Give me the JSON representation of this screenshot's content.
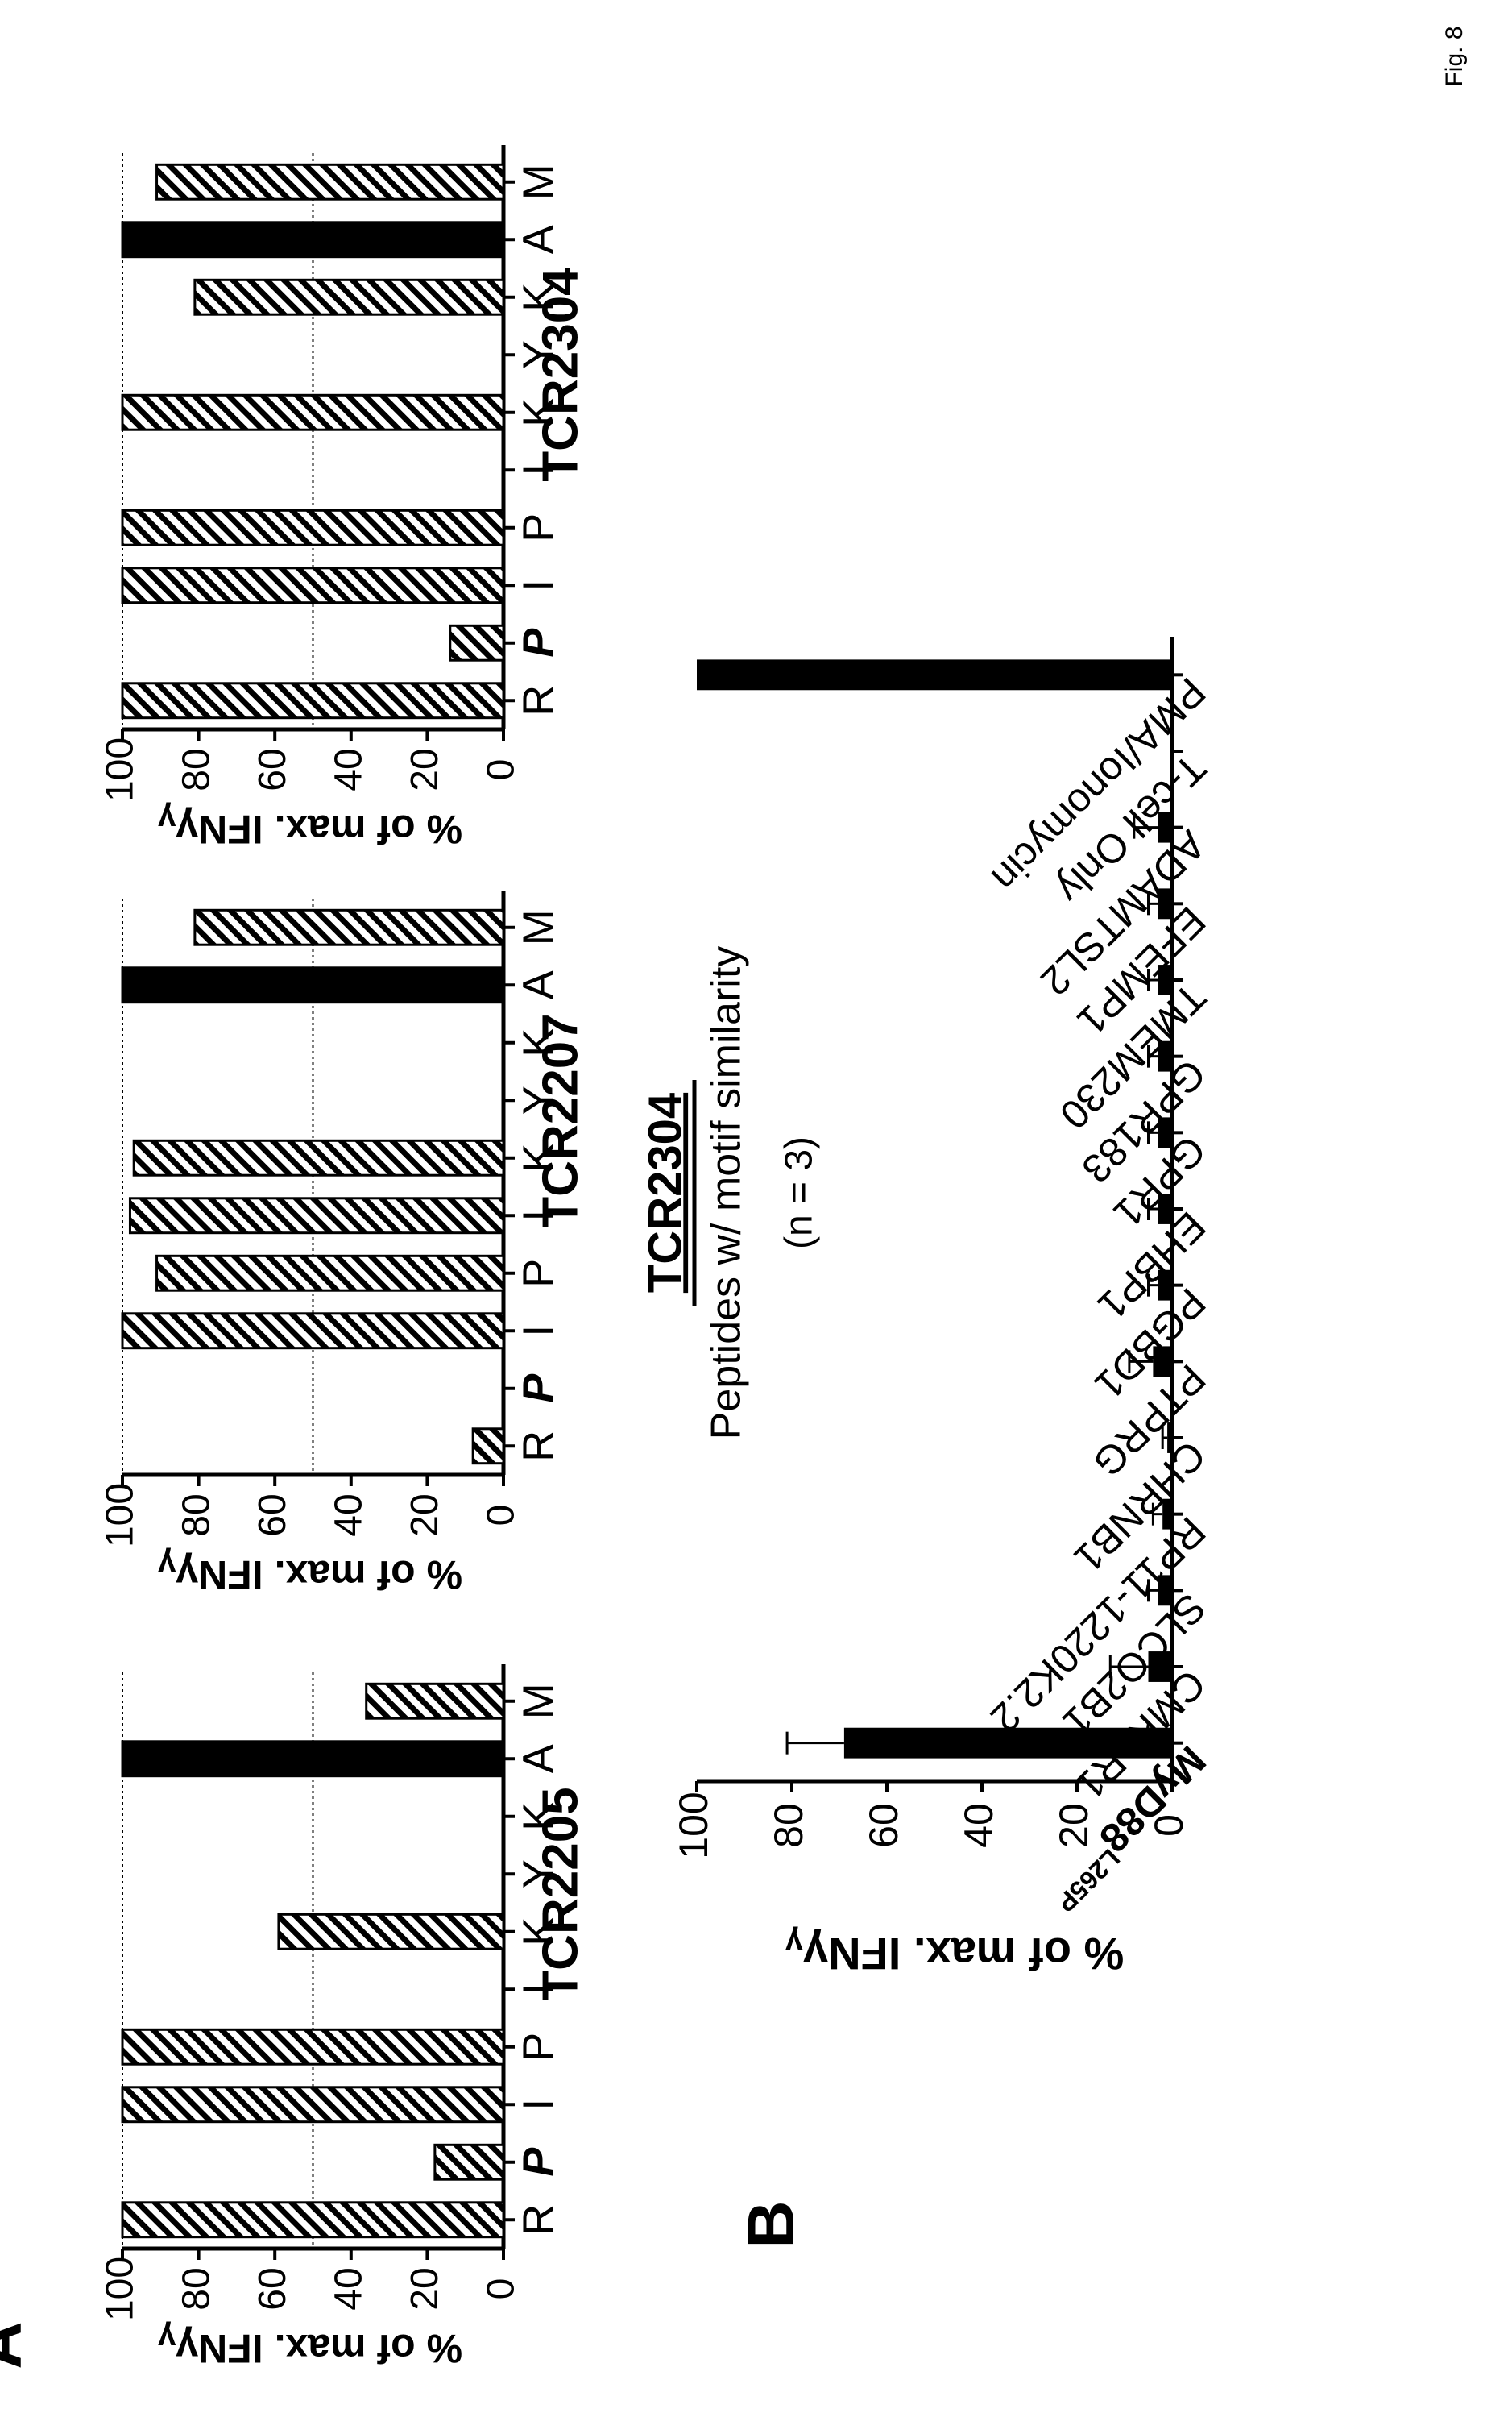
{
  "figure_label": "Fig. 8",
  "panel_a": {
    "letter": "A",
    "ylabel": "% of max. IFN",
    "ylabel_greek": "γ",
    "yticks": [
      "0",
      "20",
      "40",
      "60",
      "80",
      "100"
    ],
    "categories": [
      "R",
      "P",
      "I",
      "P",
      "I",
      "K",
      "Y",
      "K",
      "A",
      "M"
    ]
  },
  "panel_b": {
    "letter": "B",
    "title": "TCR2304",
    "subtitle": "Peptides w/ motif similarity",
    "n_label": "(n = 3)",
    "ylabel": "% of max. IFN",
    "ylabel_greek": "γ",
    "yticks": [
      "0",
      "20",
      "40",
      "60",
      "80",
      "100"
    ],
    "first_label_main": "MyD88",
    "first_label_sub": "L265P"
  },
  "colors": {
    "mutant_bar": "#000000",
    "variant_bar": "hatched-black-white",
    "gridline": "#000000"
  },
  "chart_data": [
    {
      "type": "bar",
      "title": "TCR2205",
      "ylabel": "% of max. IFNγ",
      "ylim": [
        0,
        100
      ],
      "reference_line": 50,
      "categories": [
        "R",
        "P",
        "I",
        "P",
        "I",
        "K",
        "Y",
        "K",
        "A",
        "M"
      ],
      "values": [
        100,
        18,
        100,
        100,
        0,
        59,
        0,
        0,
        100,
        36
      ],
      "fill": [
        "hatched",
        "hatched",
        "hatched",
        "hatched",
        "hatched",
        "hatched",
        "hatched",
        "hatched",
        "solid",
        "hatched"
      ],
      "bold_italic_category_index": 1
    },
    {
      "type": "bar",
      "title": "TCR2207",
      "ylabel": "% of max. IFNγ",
      "ylim": [
        0,
        100
      ],
      "reference_line": 50,
      "categories": [
        "R",
        "P",
        "I",
        "P",
        "I",
        "K",
        "Y",
        "K",
        "A",
        "M"
      ],
      "values": [
        8,
        0,
        100,
        91,
        98,
        97,
        0,
        0,
        100,
        81
      ],
      "fill": [
        "hatched",
        "hatched",
        "hatched",
        "hatched",
        "hatched",
        "hatched",
        "hatched",
        "hatched",
        "solid",
        "hatched"
      ],
      "bold_italic_category_index": 1
    },
    {
      "type": "bar",
      "title": "TCR2304",
      "ylabel": "% of max. IFNγ",
      "ylim": [
        0,
        100
      ],
      "reference_line": 50,
      "categories": [
        "R",
        "P",
        "I",
        "P",
        "I",
        "K",
        "Y",
        "K",
        "A",
        "M"
      ],
      "values": [
        100,
        14,
        100,
        100,
        0,
        100,
        0,
        81,
        100,
        91
      ],
      "fill": [
        "hatched",
        "hatched",
        "hatched",
        "hatched",
        "hatched",
        "hatched",
        "hatched",
        "hatched",
        "solid",
        "hatched"
      ],
      "bold_italic_category_index": 1
    },
    {
      "type": "bar",
      "title": "TCR2304",
      "subtitle": "Peptides w/ motif similarity",
      "ylabel": "% of max. IFNγ",
      "ylim": [
        0,
        100
      ],
      "categories": [
        "MyD88L265P",
        "CMKLR1",
        "SLCO2B1",
        "RP11-1220K2.2",
        "CHRNB1",
        "PTPRG",
        "PGBD1",
        "EHBP1",
        "GPR1",
        "GPR183",
        "TMEM230",
        "EFEMP1",
        "ADAMTSL2",
        "T-cell Only",
        "PMA/Ionomycin"
      ],
      "values": [
        69,
        5,
        3,
        2,
        1,
        4,
        3,
        3,
        3,
        3,
        3,
        3,
        3,
        0,
        100
      ],
      "errors": [
        12,
        8,
        2,
        2,
        1,
        5,
        2,
        2,
        2,
        2,
        2,
        2,
        5,
        0,
        0
      ],
      "fill": "solid"
    }
  ]
}
